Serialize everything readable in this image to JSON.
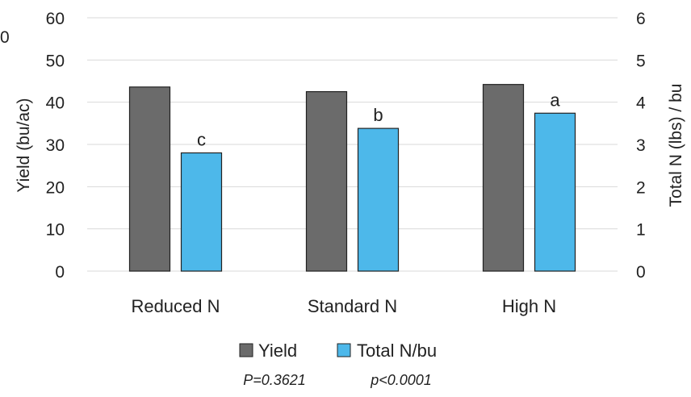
{
  "chart_data": {
    "type": "bar",
    "categories": [
      "Reduced N",
      "Standard N",
      "High N"
    ],
    "series": [
      {
        "name": "Yield",
        "axis": "left",
        "values": [
          43.6,
          42.5,
          44.2
        ],
        "color": "#6b6b6b",
        "labels": [
          "",
          "",
          ""
        ]
      },
      {
        "name": "Total N/bu",
        "axis": "right",
        "values": [
          2.8,
          3.38,
          3.74
        ],
        "color": "#4db8ea",
        "labels": [
          "c",
          "b",
          "a"
        ]
      }
    ],
    "y_left": {
      "label": "Yield (bu/ac)",
      "lim": [
        0,
        60
      ],
      "ticks": [
        "0",
        "10",
        "20",
        "30",
        "40",
        "50",
        "60"
      ]
    },
    "y_right": {
      "label": "Total N (lbs) / bu",
      "lim": [
        0,
        6
      ],
      "ticks": [
        "0",
        "1",
        "2",
        "3",
        "4",
        "5",
        "6"
      ]
    },
    "grid": true,
    "legend_position": "bottom",
    "stray_tick_text": "0",
    "footnotes": [
      "P=0.3621",
      "p<0.0001"
    ]
  },
  "colors": {
    "yield": "#6b6b6b",
    "total_n": "#4db8ea",
    "grid": "#d9d9d9"
  }
}
